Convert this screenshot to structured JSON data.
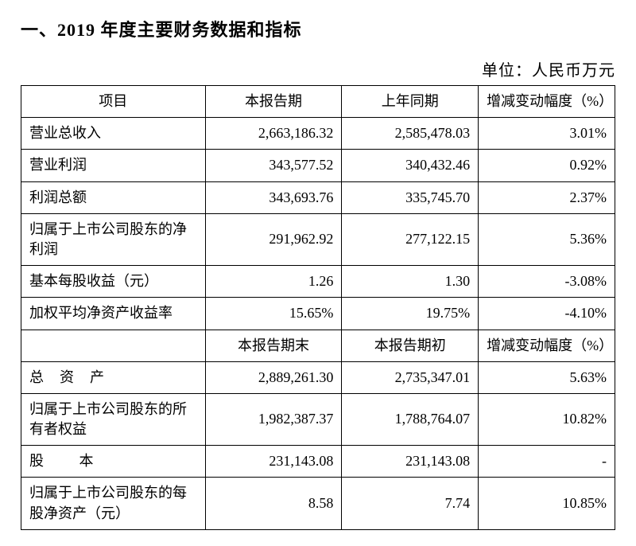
{
  "heading": "一、2019 年度主要财务数据和指标",
  "unit_label": "单位：人民币万元",
  "table": {
    "header1": {
      "item": "项目",
      "col1": "本报告期",
      "col2": "上年同期",
      "col3": "增减变动幅度（%）"
    },
    "rows1": [
      {
        "item": "营业总收入",
        "a": "2,663,186.32",
        "b": "2,585,478.03",
        "c": "3.01%"
      },
      {
        "item": "营业利润",
        "a": "343,577.52",
        "b": "340,432.46",
        "c": "0.92%"
      },
      {
        "item": "利润总额",
        "a": "343,693.76",
        "b": "335,745.70",
        "c": "2.37%"
      },
      {
        "item": "归属于上市公司股东的净利润",
        "a": "291,962.92",
        "b": "277,122.15",
        "c": "5.36%"
      },
      {
        "item": "基本每股收益（元）",
        "a": "1.26",
        "b": "1.30",
        "c": "-3.08%"
      },
      {
        "item": "加权平均净资产收益率",
        "a": "15.65%",
        "b": "19.75%",
        "c": "-4.10%"
      }
    ],
    "header2": {
      "col1": "本报告期末",
      "col2": "本报告期初",
      "col3": "增减变动幅度（%）"
    },
    "rows2": [
      {
        "item": "总资产",
        "a": "2,889,261.30",
        "b": "2,735,347.01",
        "c": "5.63%",
        "wide": true
      },
      {
        "item": "归属于上市公司股东的所有者权益",
        "a": "1,982,387.37",
        "b": "1,788,764.07",
        "c": "10.82%"
      },
      {
        "item": "股  本",
        "a": "231,143.08",
        "b": "231,143.08",
        "c": "-",
        "spread2": true
      },
      {
        "item": "归属于上市公司股东的每股净资产（元）",
        "a": "8.58",
        "b": "7.74",
        "c": "10.85%"
      }
    ]
  }
}
